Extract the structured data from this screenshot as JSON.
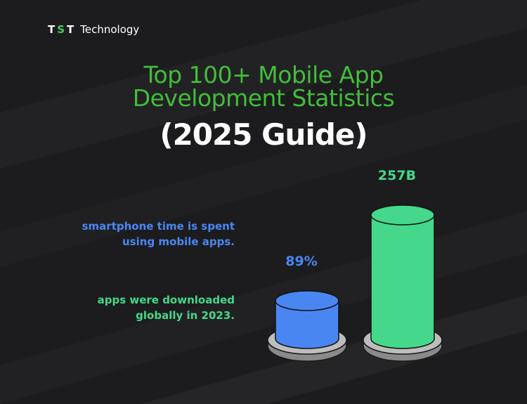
{
  "brand": {
    "mark": [
      "T",
      "S",
      "T"
    ],
    "name": "Technology"
  },
  "title": {
    "line1": "Top 100+ Mobile App",
    "line2": "Development Statistics",
    "subtitle": "(2025 Guide)"
  },
  "stats": [
    {
      "text_line1": "smartphone time is spent",
      "text_line2": "using mobile apps.",
      "color": "#4a86f2"
    },
    {
      "text_line1": "apps were downloaded",
      "text_line2": "globally in 2023.",
      "color": "#45d88a"
    }
  ],
  "chart_data": {
    "type": "bar",
    "categories": [
      "smartphone time is spent using mobile apps.",
      "apps were downloaded globally in 2023."
    ],
    "values": [
      89,
      257
    ],
    "value_labels": [
      "89%",
      "257B"
    ],
    "colors": [
      "#4a86f2",
      "#45d88a"
    ]
  }
}
